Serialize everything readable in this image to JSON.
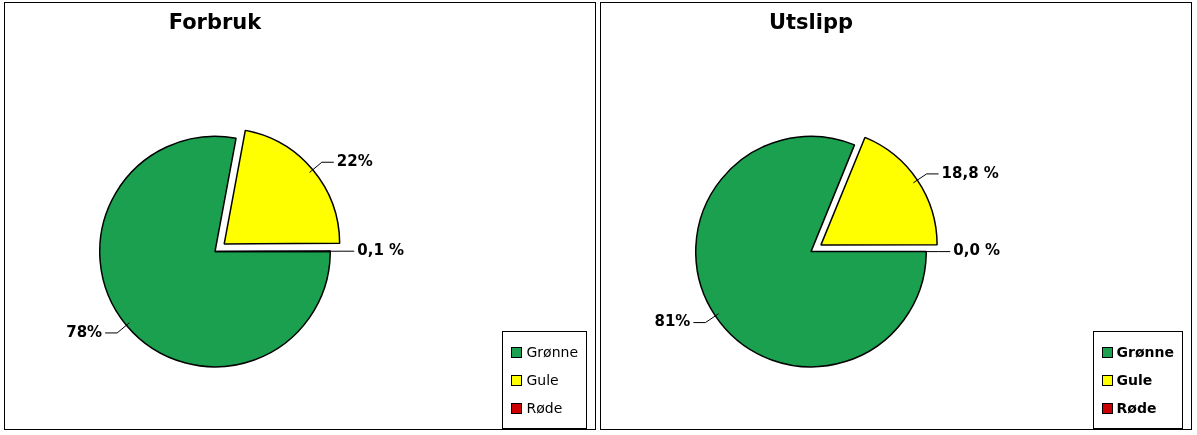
{
  "chart_data": [
    {
      "type": "pie",
      "title": "Forbruk",
      "categories": [
        "Grønne",
        "Gule",
        "Røde"
      ],
      "values": [
        78,
        22,
        0.1
      ],
      "value_labels": [
        "78%",
        "22%",
        "0,1 %"
      ],
      "colors": [
        "#1aa04f",
        "#ffff00",
        "#cc0000"
      ],
      "legend": "bottom right"
    },
    {
      "type": "pie",
      "title": "Utslipp",
      "categories": [
        "Grønne",
        "Gule",
        "Røde"
      ],
      "values": [
        81,
        18.8,
        0.0
      ],
      "value_labels": [
        "81%",
        "18,8 %",
        "0,0 %"
      ],
      "colors": [
        "#1aa04f",
        "#ffff00",
        "#cc0000"
      ],
      "legend": "bottom right"
    }
  ]
}
